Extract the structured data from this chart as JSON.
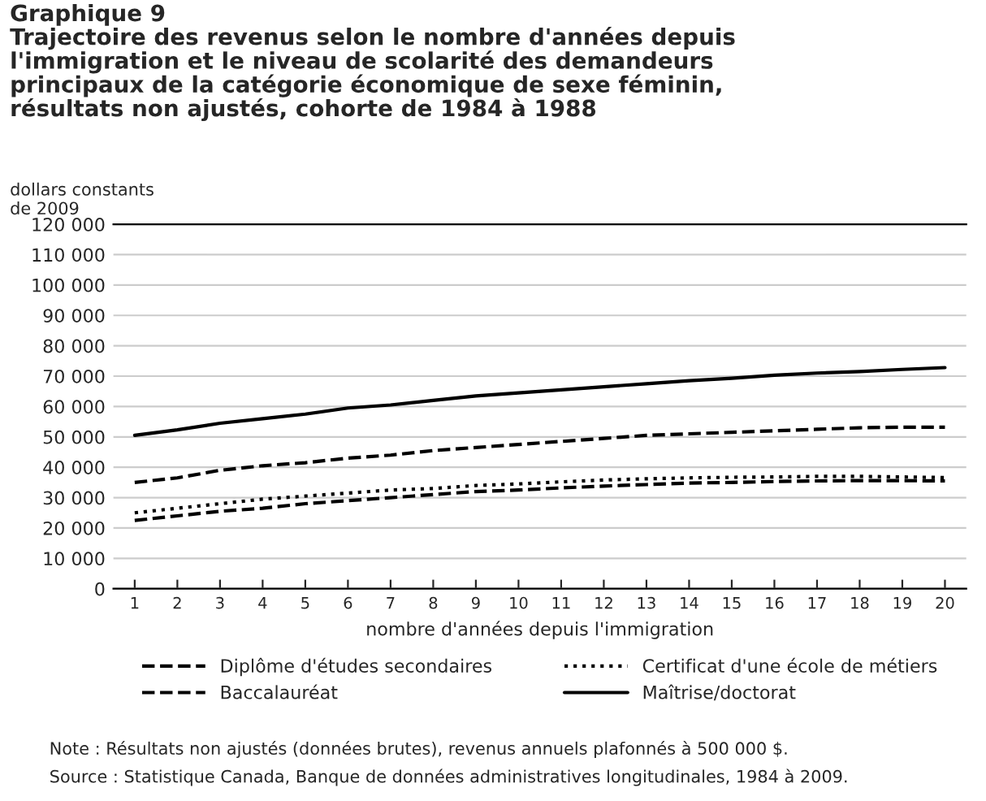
{
  "chart_data": {
    "type": "line",
    "title": "Graphique 9\nTrajectoire des revenus selon le nombre d'années depuis\nl'immigration et le niveau de scolarité des demandeurs\nprincipaux de la catégorie économique de sexe féminin,\nrésultats non ajustés, cohorte de 1984 à 1988",
    "ylabel": "dollars constants\nde 2009",
    "xlabel": "nombre d'années depuis l'immigration",
    "categories": [
      "1",
      "2",
      "3",
      "4",
      "5",
      "6",
      "7",
      "8",
      "9",
      "10",
      "11",
      "12",
      "13",
      "14",
      "15",
      "16",
      "17",
      "18",
      "19",
      "20"
    ],
    "series": [
      {
        "name": "Diplôme d'études secondaires",
        "color": "#000000",
        "line_style": "dashed",
        "values": [
          22500,
          24000,
          25500,
          26500,
          28000,
          29000,
          30000,
          31000,
          32000,
          32500,
          33200,
          33800,
          34300,
          34800,
          35000,
          35300,
          35500,
          35600,
          35600,
          35500
        ]
      },
      {
        "name": "Certificat d'une école de métiers",
        "color": "#000000",
        "line_style": "dotted",
        "values": [
          25000,
          26500,
          28000,
          29500,
          30500,
          31500,
          32500,
          33000,
          34000,
          34500,
          35200,
          35800,
          36200,
          36500,
          36700,
          36800,
          37000,
          37000,
          36800,
          36600
        ]
      },
      {
        "name": "Baccalauréat",
        "color": "#000000",
        "line_style": "dashed",
        "values": [
          35000,
          36500,
          39000,
          40500,
          41500,
          43000,
          44000,
          45500,
          46500,
          47500,
          48500,
          49500,
          50500,
          51000,
          51500,
          52000,
          52500,
          53000,
          53200,
          53200
        ]
      },
      {
        "name": "Maîtrise/doctorat",
        "color": "#000000",
        "line_style": "solid",
        "values": [
          50500,
          52300,
          54500,
          56000,
          57500,
          59500,
          60500,
          62000,
          63500,
          64500,
          65500,
          66500,
          67500,
          68500,
          69300,
          70300,
          71000,
          71500,
          72200,
          72800
        ]
      }
    ],
    "ylim": [
      0,
      120000
    ],
    "yticks": [
      0,
      {
        "value": 10000,
        "label": "10 000"
      },
      {
        "value": 20000,
        "label": "20 000"
      },
      {
        "value": 30000,
        "label": "30 000"
      },
      {
        "value": 40000,
        "label": "40 000"
      },
      {
        "value": 50000,
        "label": "50 000"
      },
      {
        "value": 60000,
        "label": "60 000"
      },
      {
        "value": 70000,
        "label": "70 000"
      },
      {
        "value": 80000,
        "label": "80 000"
      },
      {
        "value": 90000,
        "label": "90 000"
      },
      {
        "value": 100000,
        "label": "100 000"
      },
      {
        "value": 110000,
        "label": "110 000"
      },
      {
        "value": 120000,
        "label": "120 000"
      }
    ],
    "grid": "y",
    "legend": "bottom",
    "marker": "none",
    "annotations": [
      "Note : Résultats non ajustés (données brutes), revenus annuels plafonnés à 500 000 $.",
      "Source : Statistique Canada, Banque de données administratives longitudinales, 1984 à 2009."
    ]
  }
}
